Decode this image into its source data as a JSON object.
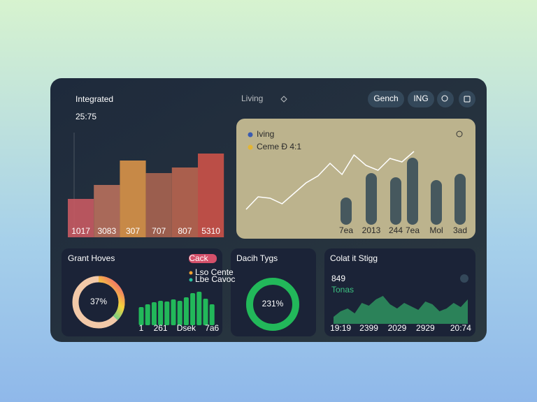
{
  "header": {
    "title": "Living",
    "buttons": [
      "Gench",
      "ING"
    ]
  },
  "chart_data": [
    {
      "type": "area-bar",
      "title": "Integrated",
      "subtitle": "25:75",
      "categories": [
        "1017",
        "3083",
        "307",
        "707",
        "807",
        "5310"
      ],
      "values": [
        55,
        75,
        110,
        92,
        100,
        120
      ],
      "colors": [
        "#c85a62",
        "#b8705c",
        "#d99448",
        "#a96450",
        "#b9654f",
        "#cc5248"
      ]
    },
    {
      "type": "line-bar",
      "legend": "top-left",
      "line": {
        "name": "Iving",
        "color": "#3a5cb0",
        "values": [
          22,
          40,
          38,
          30,
          45,
          60,
          70,
          88,
          72,
          100,
          85,
          78,
          95,
          90,
          105
        ]
      },
      "bars": {
        "name": "Ceme Ɖ 4:1",
        "color": "#e3b534",
        "values": [
          39,
          74,
          68,
          96,
          64,
          73
        ]
      },
      "bar_color": "#46585e",
      "categories": [
        "7ea",
        "2013",
        "244",
        "7ea",
        "Mol",
        "3ad"
      ]
    },
    {
      "type": "donut-bar",
      "title": "Grant Hoves",
      "button": "Cack",
      "value": 37,
      "value_label": "37%",
      "legend": [
        {
          "name": "Lso Cente",
          "color": "#f0a030"
        },
        {
          "name": "Lbe Cavoc",
          "color": "#28c0a0"
        }
      ],
      "bars": {
        "color": "#22b85a",
        "values": [
          26,
          30,
          33,
          35,
          34,
          37,
          35,
          40,
          46,
          48,
          38,
          30
        ]
      },
      "categories": [
        "1",
        null,
        null,
        "261",
        null,
        null,
        null,
        "Dsek",
        null,
        null,
        null,
        "7a6"
      ]
    },
    {
      "type": "donut",
      "title": "Dacih Tygs",
      "value": 231,
      "value_label": "231%",
      "color": "#22b85a"
    },
    {
      "type": "area",
      "title": "Colat it Stigg",
      "subtitle": "849",
      "note": "Tonas",
      "color": "#2f9a62",
      "values": [
        10,
        18,
        22,
        15,
        30,
        26,
        35,
        40,
        28,
        22,
        30,
        25,
        20,
        32,
        28,
        18,
        22,
        30,
        24,
        35
      ],
      "categories": [
        null,
        "19:19",
        null,
        null,
        null,
        "2399",
        null,
        null,
        null,
        "2029",
        null,
        null,
        null,
        "2929",
        null,
        null,
        null,
        null,
        "20:74",
        null
      ]
    }
  ]
}
